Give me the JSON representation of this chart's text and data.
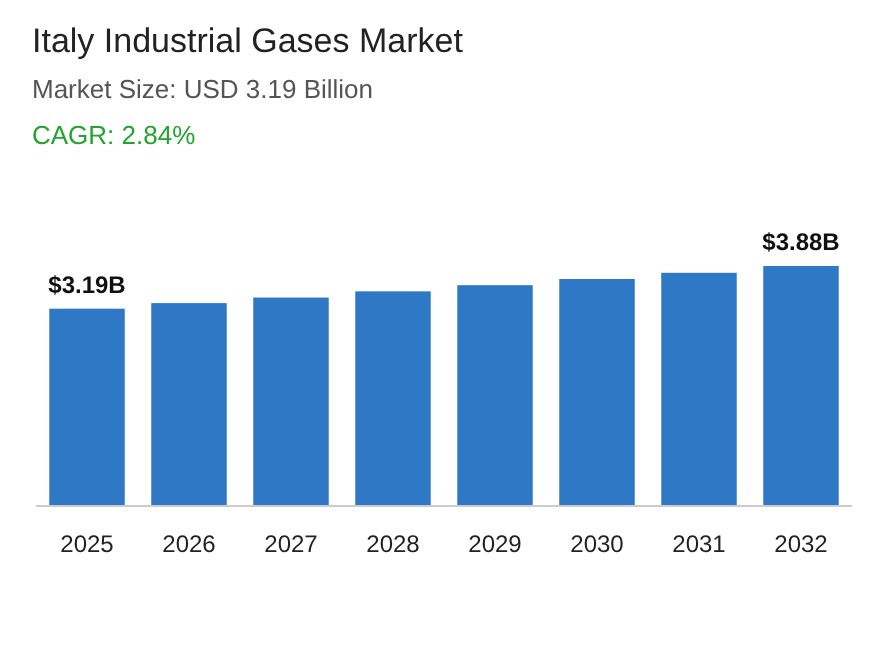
{
  "chart_data": {
    "type": "bar",
    "title": "Italy Industrial Gases Market",
    "subtitle": "Market Size: USD 3.19 Billion",
    "annotations": [
      "CAGR: 2.84%"
    ],
    "categories": [
      "2025",
      "2026",
      "2027",
      "2028",
      "2029",
      "2030",
      "2031",
      "2032"
    ],
    "values": [
      3.19,
      3.28,
      3.37,
      3.47,
      3.57,
      3.67,
      3.77,
      3.88
    ],
    "value_labels": [
      "$3.19B",
      null,
      null,
      null,
      null,
      null,
      null,
      "$3.88B"
    ],
    "color": "#2e78c5"
  }
}
